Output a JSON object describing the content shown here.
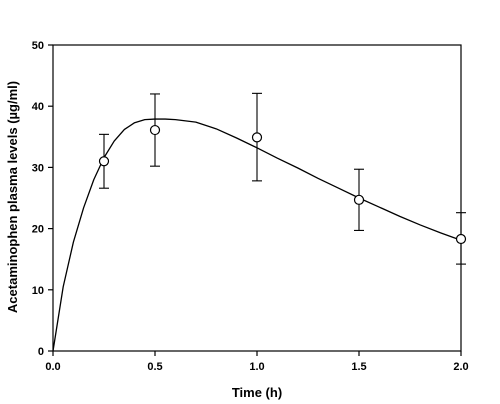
{
  "chart_data": {
    "type": "scatter",
    "xlabel": "Time (h)",
    "ylabel": "Acetaminophen  plasma  levels (µg/ml)",
    "xlim": [
      0,
      2
    ],
    "ylim": [
      0,
      50
    ],
    "x_ticks": [
      "0.0",
      "0.5",
      "1.0",
      "1.5",
      "2.0"
    ],
    "y_ticks": [
      "0",
      "10",
      "20",
      "30",
      "40",
      "50"
    ],
    "grid": false,
    "legend": "none",
    "series": [
      {
        "marker": "open-circle",
        "x": [
          0.25,
          0.5,
          1.0,
          1.5,
          2.0
        ],
        "y": [
          31.0,
          36.1,
          34.9,
          24.7,
          18.3
        ],
        "err_upper": [
          35.4,
          42.0,
          42.1,
          29.7,
          22.6
        ],
        "err_lower": [
          26.6,
          30.2,
          27.8,
          19.7,
          14.2
        ]
      }
    ],
    "fit_curve": {
      "x": [
        0,
        0.05,
        0.1,
        0.15,
        0.2,
        0.25,
        0.3,
        0.35,
        0.4,
        0.45,
        0.5,
        0.55,
        0.6,
        0.7,
        0.8,
        0.9,
        1.0,
        1.1,
        1.2,
        1.3,
        1.4,
        1.5,
        1.6,
        1.7,
        1.8,
        1.9,
        2.0
      ],
      "y": [
        0,
        10.5,
        17.8,
        23.4,
        28.0,
        31.6,
        34.3,
        36.2,
        37.3,
        37.8,
        37.9,
        37.9,
        37.8,
        37.4,
        36.3,
        34.8,
        33.2,
        31.5,
        29.9,
        28.2,
        26.6,
        25.0,
        23.5,
        22.0,
        20.6,
        19.3,
        18.1
      ]
    }
  }
}
